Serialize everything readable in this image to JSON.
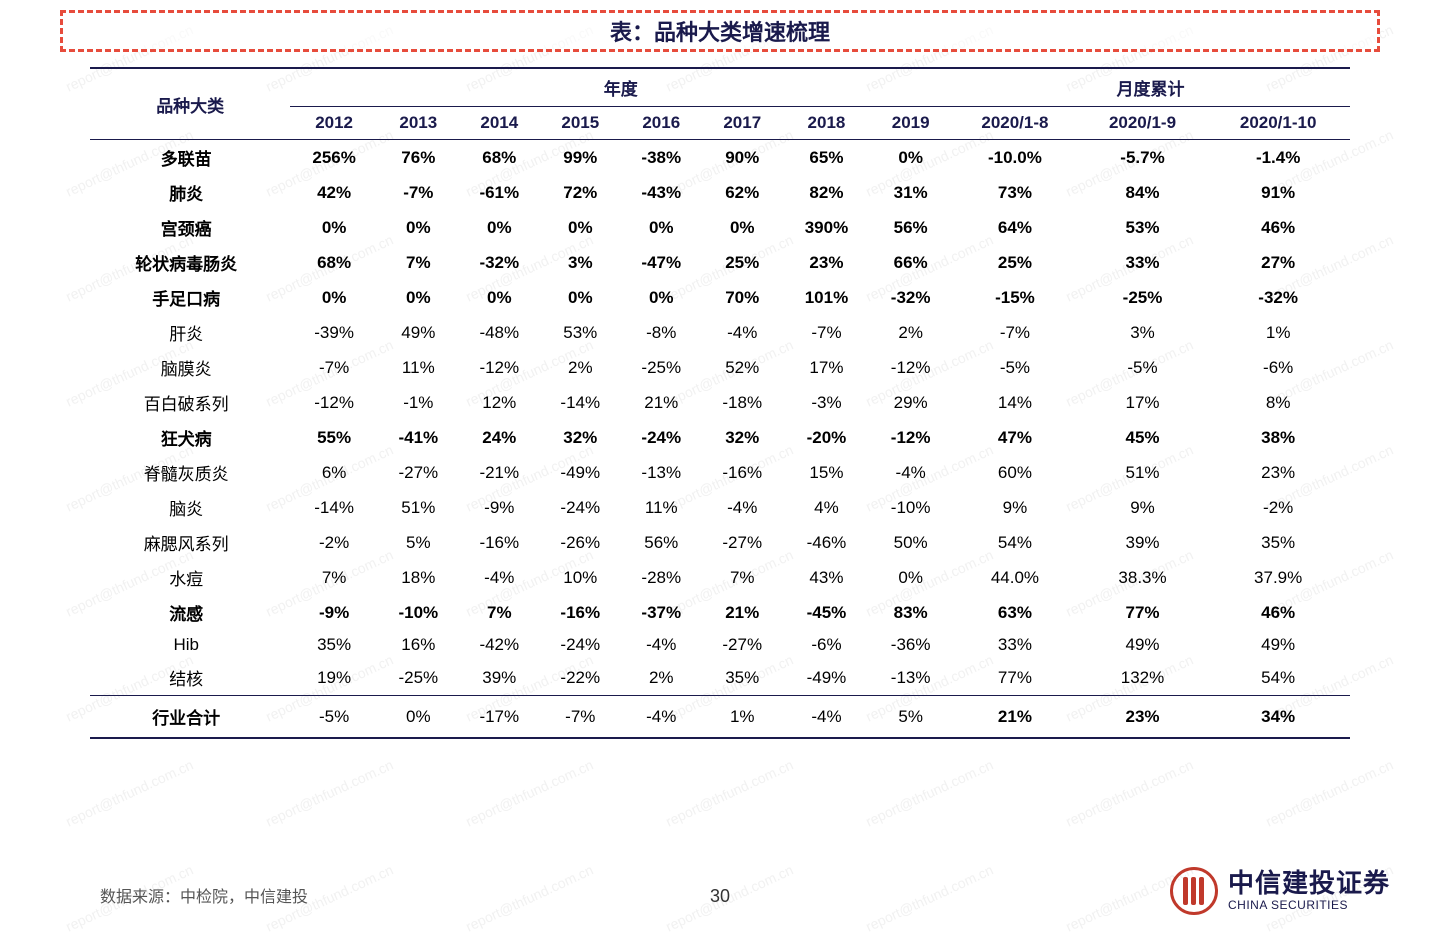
{
  "title": "表：品种大类增速梳理",
  "watermark_text": "report@thfund.com.cn",
  "columns": {
    "label": "品种大类",
    "group1": "年度",
    "group2": "月度累计",
    "years": [
      "2012",
      "2013",
      "2014",
      "2015",
      "2016",
      "2017",
      "2018",
      "2019",
      "2020/1-8",
      "2020/1-9",
      "2020/1-10"
    ]
  },
  "rows": [
    {
      "label": "多联苗",
      "bold": true,
      "vals": [
        "256%",
        "76%",
        "68%",
        "99%",
        "-38%",
        "90%",
        "65%",
        "0%",
        "-10.0%",
        "-5.7%",
        "-1.4%"
      ]
    },
    {
      "label": "肺炎",
      "bold": true,
      "vals": [
        "42%",
        "-7%",
        "-61%",
        "72%",
        "-43%",
        "62%",
        "82%",
        "31%",
        "73%",
        "84%",
        "91%"
      ]
    },
    {
      "label": "宫颈癌",
      "bold": true,
      "vals": [
        "0%",
        "0%",
        "0%",
        "0%",
        "0%",
        "0%",
        "390%",
        "56%",
        "64%",
        "53%",
        "46%"
      ]
    },
    {
      "label": "轮状病毒肠炎",
      "bold": true,
      "vals": [
        "68%",
        "7%",
        "-32%",
        "3%",
        "-47%",
        "25%",
        "23%",
        "66%",
        "25%",
        "33%",
        "27%"
      ]
    },
    {
      "label": "手足口病",
      "bold": true,
      "vals": [
        "0%",
        "0%",
        "0%",
        "0%",
        "0%",
        "70%",
        "101%",
        "-32%",
        "-15%",
        "-25%",
        "-32%"
      ]
    },
    {
      "label": "肝炎",
      "bold": false,
      "vals": [
        "-39%",
        "49%",
        "-48%",
        "53%",
        "-8%",
        "-4%",
        "-7%",
        "2%",
        "-7%",
        "3%",
        "1%"
      ]
    },
    {
      "label": "脑膜炎",
      "bold": false,
      "vals": [
        "-7%",
        "11%",
        "-12%",
        "2%",
        "-25%",
        "52%",
        "17%",
        "-12%",
        "-5%",
        "-5%",
        "-6%"
      ]
    },
    {
      "label": "百白破系列",
      "bold": false,
      "vals": [
        "-12%",
        "-1%",
        "12%",
        "-14%",
        "21%",
        "-18%",
        "-3%",
        "29%",
        "14%",
        "17%",
        "8%"
      ]
    },
    {
      "label": "狂犬病",
      "bold": true,
      "vals": [
        "55%",
        "-41%",
        "24%",
        "32%",
        "-24%",
        "32%",
        "-20%",
        "-12%",
        "47%",
        "45%",
        "38%"
      ]
    },
    {
      "label": "脊髓灰质炎",
      "bold": false,
      "vals": [
        "6%",
        "-27%",
        "-21%",
        "-49%",
        "-13%",
        "-16%",
        "15%",
        "-4%",
        "60%",
        "51%",
        "23%"
      ]
    },
    {
      "label": "脑炎",
      "bold": false,
      "vals": [
        "-14%",
        "51%",
        "-9%",
        "-24%",
        "11%",
        "-4%",
        "4%",
        "-10%",
        "9%",
        "9%",
        "-2%"
      ]
    },
    {
      "label": "麻腮风系列",
      "bold": false,
      "vals": [
        "-2%",
        "5%",
        "-16%",
        "-26%",
        "56%",
        "-27%",
        "-46%",
        "50%",
        "54%",
        "39%",
        "35%"
      ]
    },
    {
      "label": "水痘",
      "bold": false,
      "vals": [
        "7%",
        "18%",
        "-4%",
        "10%",
        "-28%",
        "7%",
        "43%",
        "0%",
        "44.0%",
        "38.3%",
        "37.9%"
      ]
    },
    {
      "label": "流感",
      "bold": true,
      "vals": [
        "-9%",
        "-10%",
        "7%",
        "-16%",
        "-37%",
        "21%",
        "-45%",
        "83%",
        "63%",
        "77%",
        "46%"
      ]
    },
    {
      "label": "Hib",
      "bold": false,
      "vals": [
        "35%",
        "16%",
        "-42%",
        "-24%",
        "-4%",
        "-27%",
        "-6%",
        "-36%",
        "33%",
        "49%",
        "49%"
      ]
    },
    {
      "label": "结核",
      "bold": false,
      "vals": [
        "19%",
        "-25%",
        "39%",
        "-22%",
        "2%",
        "35%",
        "-49%",
        "-13%",
        "77%",
        "132%",
        "54%"
      ]
    }
  ],
  "total": {
    "label": "行业合计",
    "vals": [
      "-5%",
      "0%",
      "-17%",
      "-7%",
      "-4%",
      "1%",
      "-4%",
      "5%",
      "21%",
      "23%",
      "34%"
    ],
    "bold_idx": [
      8,
      9,
      10
    ]
  },
  "source": "数据来源：中检院，中信建投",
  "page_number": "30",
  "logo": {
    "cn": "中信建投证券",
    "en": "CHINA SECURITIES"
  }
}
